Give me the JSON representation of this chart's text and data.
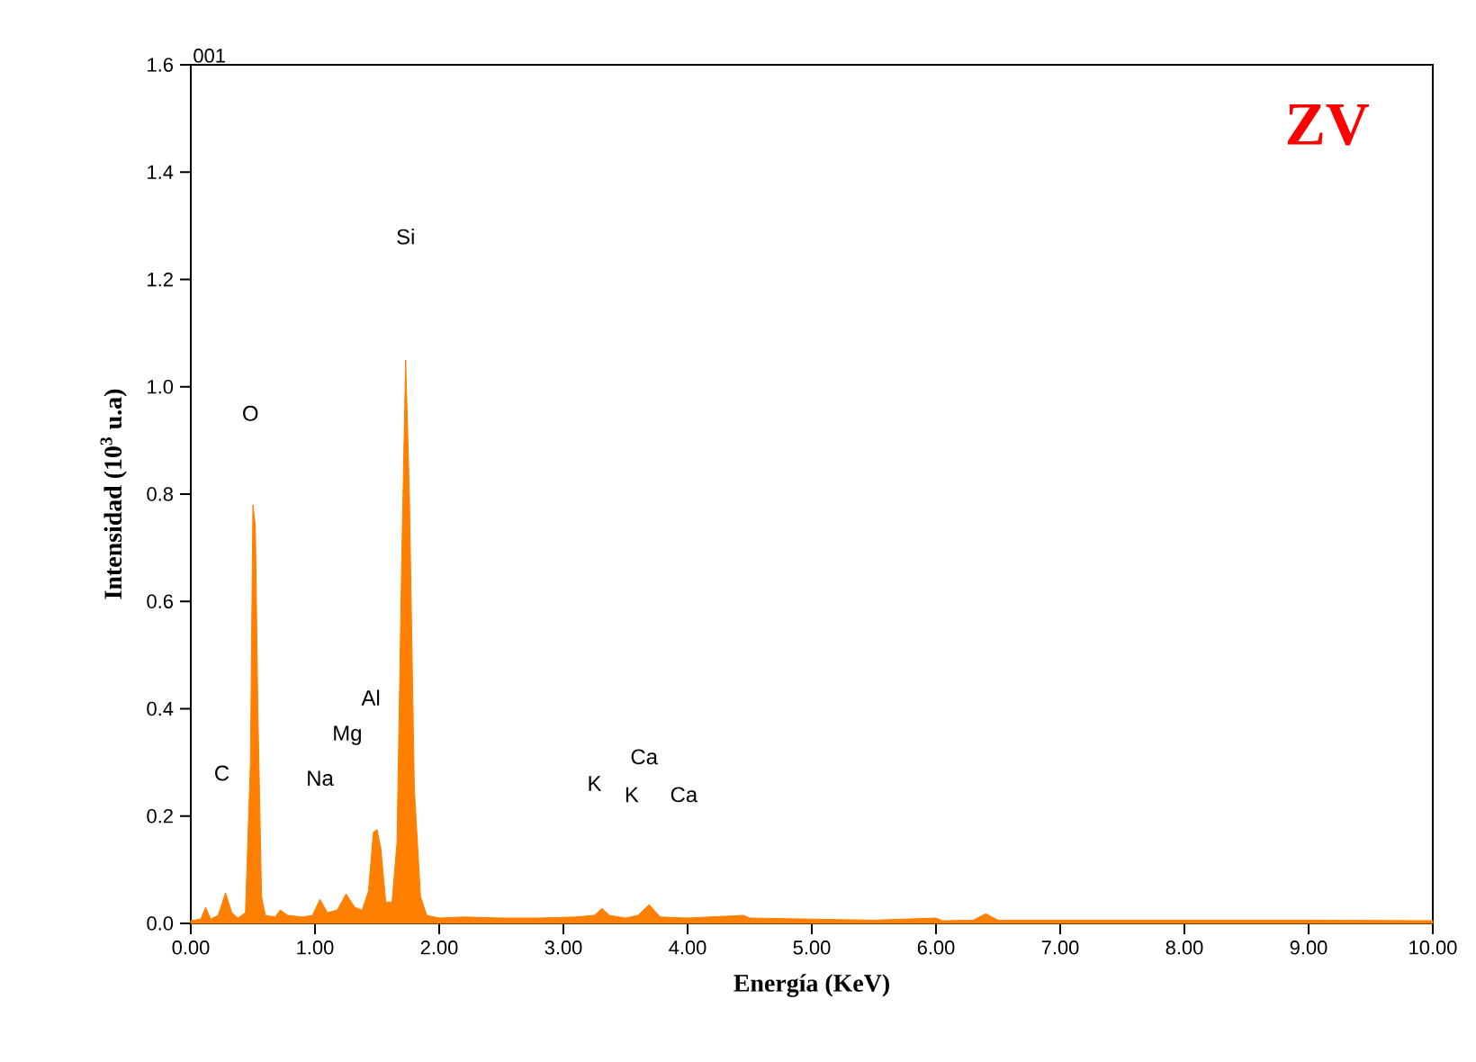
{
  "chart_data": {
    "type": "area",
    "xlabel": "Energía (KeV)",
    "ylabel": "Intensidad (10$^{3}$ u.a)",
    "annotations": [
      "001",
      "ZV",
      "C",
      "O",
      "Na",
      "Mg",
      "Al",
      "Si",
      "K",
      "Ca",
      "K",
      "Ca"
    ],
    "x": [
      0,
      0.08,
      0.12,
      0.16,
      0.22,
      0.28,
      0.33,
      0.38,
      0.44,
      0.48,
      0.5,
      0.52,
      0.54,
      0.57,
      0.6,
      0.68,
      0.72,
      0.78,
      0.9,
      0.98,
      1.04,
      1.1,
      1.18,
      1.25,
      1.32,
      1.38,
      1.43,
      1.47,
      1.5,
      1.53,
      1.57,
      1.62,
      1.66,
      1.7,
      1.73,
      1.76,
      1.8,
      1.85,
      1.9,
      2.0,
      2.2,
      2.5,
      2.8,
      3.1,
      3.25,
      3.31,
      3.37,
      3.5,
      3.6,
      3.69,
      3.78,
      4.0,
      4.45,
      4.5,
      5.0,
      5.5,
      6.0,
      6.05,
      6.3,
      6.4,
      6.5,
      7.0,
      8.0,
      9.0,
      10
    ],
    "series": [
      {
        "color": "#ff8000",
        "values": [
          0.005,
          0.008,
          0.03,
          0.008,
          0.015,
          0.057,
          0.02,
          0.01,
          0.02,
          0.3,
          0.78,
          0.74,
          0.4,
          0.05,
          0.015,
          0.012,
          0.025,
          0.015,
          0.012,
          0.015,
          0.045,
          0.02,
          0.025,
          0.055,
          0.03,
          0.025,
          0.06,
          0.17,
          0.175,
          0.14,
          0.04,
          0.04,
          0.15,
          0.7,
          1.05,
          0.8,
          0.25,
          0.05,
          0.015,
          0.01,
          0.012,
          0.01,
          0.01,
          0.012,
          0.015,
          0.028,
          0.015,
          0.01,
          0.015,
          0.035,
          0.012,
          0.01,
          0.015,
          0.01,
          0.008,
          0.006,
          0.01,
          0.005,
          0.006,
          0.018,
          0.006,
          0.006,
          0.006,
          0.006,
          0.005
        ]
      }
    ],
    "xlim": [
      0,
      10
    ],
    "ylim": [
      0,
      1.6
    ],
    "xticks": [
      {
        "value": 0,
        "label": "0.00"
      },
      {
        "value": 1,
        "label": "1.00"
      },
      {
        "value": 2,
        "label": "2.00"
      },
      {
        "value": 3,
        "label": "3.00"
      },
      {
        "value": 4,
        "label": "4.00"
      },
      {
        "value": 5,
        "label": "5.00"
      },
      {
        "value": 6,
        "label": "6.00"
      },
      {
        "value": 7,
        "label": "7.00"
      },
      {
        "value": 8,
        "label": "8.00"
      },
      {
        "value": 9,
        "label": "9.00"
      },
      {
        "value": 10,
        "label": "10.00"
      }
    ],
    "yticks": [
      {
        "value": 0,
        "label": "0.0"
      },
      {
        "value": 0.2,
        "label": "0.2"
      },
      {
        "value": 0.4,
        "label": "0.4"
      },
      {
        "value": 0.6,
        "label": "0.6"
      },
      {
        "value": 0.8,
        "label": "0.8"
      },
      {
        "value": 1.0,
        "label": "1.0"
      },
      {
        "value": 1.2,
        "label": "1.2"
      },
      {
        "value": 1.4,
        "label": "1.4"
      },
      {
        "value": 1.6,
        "label": "1.6"
      }
    ],
    "grid": false
  }
}
